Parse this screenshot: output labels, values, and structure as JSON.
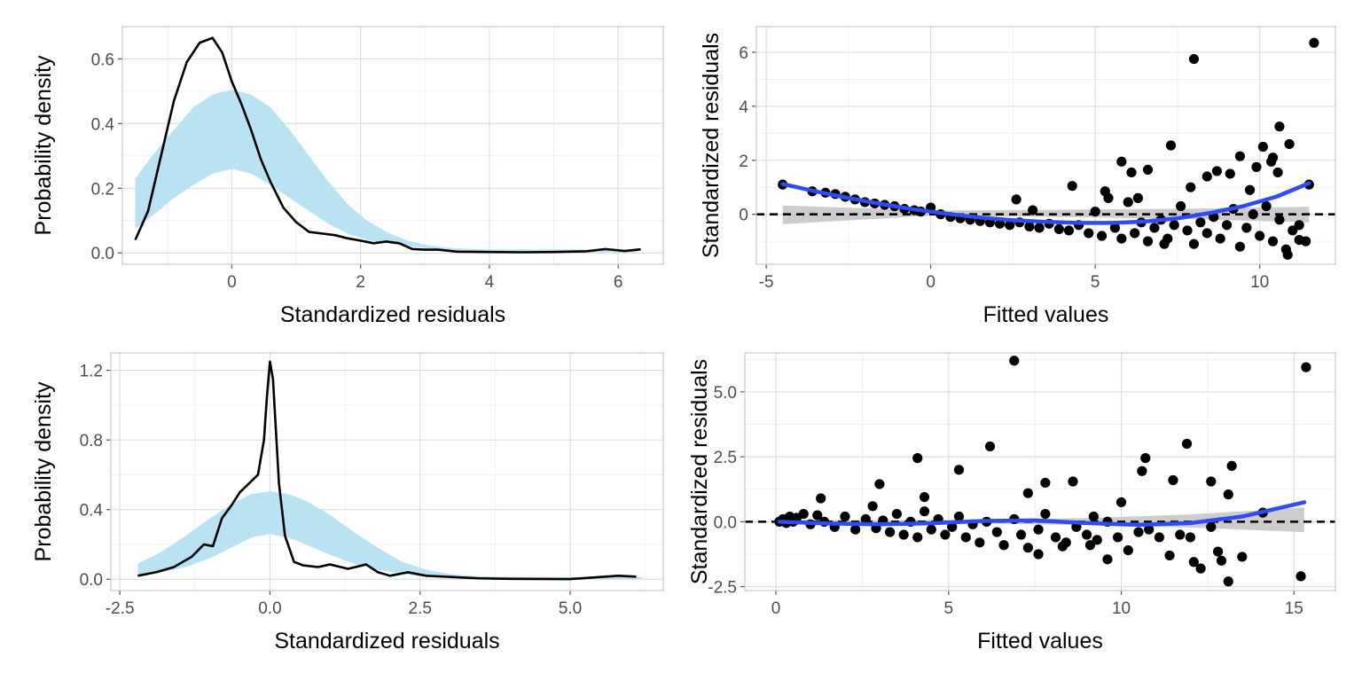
{
  "chart_data": [
    {
      "id": "density-top",
      "type": "area",
      "xlabel": "Standardized residuals",
      "ylabel": "Probability density",
      "xlim": [
        -1.7,
        6.7
      ],
      "ylim": [
        -0.035,
        0.7
      ],
      "xticks": [
        0,
        2,
        4,
        6
      ],
      "xtick_labels": [
        "0",
        "2",
        "4",
        "6"
      ],
      "yticks": [
        0.0,
        0.2,
        0.4,
        0.6
      ],
      "ytick_labels": [
        "0.0",
        "0.2",
        "0.4",
        "0.6"
      ],
      "grid": true,
      "band": {
        "color": "#b9e2f3",
        "x": [
          -1.5,
          -1.2,
          -0.9,
          -0.6,
          -0.3,
          0.0,
          0.3,
          0.6,
          0.9,
          1.2,
          1.5,
          1.8,
          2.1,
          2.4,
          2.7,
          3.0,
          3.3,
          3.6,
          4.0,
          5.0,
          6.3
        ],
        "upper": [
          0.23,
          0.31,
          0.38,
          0.45,
          0.49,
          0.505,
          0.49,
          0.45,
          0.38,
          0.3,
          0.22,
          0.15,
          0.1,
          0.065,
          0.04,
          0.025,
          0.017,
          0.013,
          0.011,
          0.011,
          0.011
        ],
        "lower": [
          0.075,
          0.12,
          0.17,
          0.21,
          0.245,
          0.26,
          0.245,
          0.21,
          0.17,
          0.13,
          0.09,
          0.06,
          0.04,
          0.03,
          0.022,
          0.015,
          0.01,
          0.006,
          0.004,
          0.002,
          0.002
        ]
      },
      "series": [
        {
          "color": "#000000",
          "x": [
            -1.5,
            -1.3,
            -1.1,
            -0.9,
            -0.7,
            -0.5,
            -0.3,
            -0.15,
            0.0,
            0.15,
            0.3,
            0.45,
            0.6,
            0.8,
            1.0,
            1.2,
            1.4,
            1.6,
            1.8,
            2.0,
            2.2,
            2.4,
            2.6,
            2.8,
            3.0,
            3.2,
            3.5,
            4.0,
            4.5,
            5.0,
            5.5,
            5.8,
            6.1,
            6.35
          ],
          "values": [
            0.04,
            0.13,
            0.3,
            0.47,
            0.59,
            0.65,
            0.665,
            0.62,
            0.53,
            0.46,
            0.38,
            0.29,
            0.22,
            0.14,
            0.095,
            0.065,
            0.06,
            0.055,
            0.045,
            0.038,
            0.03,
            0.035,
            0.03,
            0.012,
            0.01,
            0.01,
            0.004,
            0.003,
            0.002,
            0.003,
            0.005,
            0.012,
            0.006,
            0.011
          ]
        }
      ]
    },
    {
      "id": "resid-top",
      "type": "scatter",
      "xlabel": "Fitted values",
      "ylabel": "Standardized residuals",
      "xlim": [
        -5.3,
        12.3
      ],
      "ylim": [
        -1.85,
        6.95
      ],
      "xticks": [
        -5,
        0,
        5,
        10
      ],
      "xtick_labels": [
        "-5",
        "0",
        "5",
        "10"
      ],
      "yticks": [
        0,
        2,
        4,
        6
      ],
      "ytick_labels": [
        "0",
        "2",
        "4",
        "6"
      ],
      "grid": true,
      "reference_line": {
        "y": 0,
        "style": "dashed",
        "color": "#000000"
      },
      "band": {
        "color": "#cccccc",
        "x": [
          -4.5,
          0,
          4,
          8,
          11.5
        ],
        "upper": [
          0.33,
          0.14,
          0.17,
          0.21,
          0.28
        ],
        "lower": [
          -0.37,
          -0.05,
          -0.1,
          -0.18,
          -0.3
        ]
      },
      "smooth": {
        "color": "#2f4cf2",
        "x": [
          -4.5,
          -3.5,
          -2.5,
          -1.5,
          -0.5,
          0.5,
          1.5,
          2.5,
          3.5,
          4.5,
          5.5,
          6.5,
          7.5,
          8.5,
          9.5,
          10.5,
          11.5
        ],
        "values": [
          1.12,
          0.85,
          0.6,
          0.38,
          0.18,
          0.02,
          -0.12,
          -0.22,
          -0.28,
          -0.32,
          -0.32,
          -0.27,
          -0.15,
          0.05,
          0.3,
          0.65,
          1.15
        ]
      },
      "points": {
        "color": "#000000",
        "x": [
          -4.5,
          -3.6,
          -3.2,
          -2.9,
          -2.6,
          -2.3,
          -2.0,
          -1.7,
          -1.4,
          -1.1,
          -0.8,
          -0.5,
          -0.3,
          0.0,
          0.3,
          0.6,
          0.9,
          1.2,
          1.5,
          1.8,
          2.1,
          2.4,
          2.7,
          3.0,
          3.3,
          3.6,
          3.9,
          4.2,
          4.5,
          4.8,
          5.0,
          5.2,
          5.4,
          5.6,
          5.8,
          6.0,
          6.2,
          6.4,
          6.6,
          6.8,
          7.0,
          7.2,
          7.4,
          7.6,
          7.8,
          8.0,
          8.2,
          8.4,
          8.6,
          8.8,
          9.0,
          9.2,
          9.4,
          9.6,
          9.8,
          10.0,
          10.2,
          10.4,
          10.6,
          10.8,
          11.0,
          11.2,
          11.4,
          5.3,
          6.3,
          6.6,
          7.3,
          7.9,
          8.4,
          9.1,
          9.7,
          10.1,
          10.4,
          11.5,
          4.3,
          2.6,
          3.1,
          5.8,
          6.1,
          7.1,
          8.0,
          8.7,
          9.4,
          9.9,
          10.6,
          10.9
        ],
        "values": [
          1.1,
          0.85,
          0.8,
          0.75,
          0.65,
          0.55,
          0.45,
          0.4,
          0.35,
          0.3,
          0.2,
          0.15,
          0.1,
          0.25,
          0.0,
          -0.1,
          -0.15,
          -0.2,
          -0.25,
          -0.3,
          -0.35,
          -0.4,
          -0.3,
          -0.45,
          -0.5,
          -0.35,
          -0.55,
          -0.6,
          -0.4,
          -0.7,
          0.1,
          -0.8,
          0.6,
          -0.5,
          -0.9,
          0.45,
          -0.7,
          -0.3,
          -1.0,
          -0.5,
          -0.2,
          -0.9,
          -0.4,
          0.3,
          -0.6,
          -1.1,
          -0.3,
          -0.7,
          -0.1,
          -0.9,
          -0.4,
          0.2,
          -1.2,
          -0.5,
          0.0,
          -0.8,
          0.3,
          -1.0,
          -0.2,
          -1.3,
          -0.6,
          -0.4,
          -1.0,
          0.85,
          0.6,
          1.65,
          2.55,
          1.0,
          1.4,
          1.5,
          0.9,
          2.5,
          2.1,
          1.1,
          1.05,
          0.55,
          0.15,
          1.95,
          1.55,
          -1.1,
          5.75,
          1.6,
          2.15,
          1.75,
          3.25,
          2.6
        ],
        "extra_points_x": [
          11.65,
          10.55,
          10.35,
          10.85,
          11.2
        ],
        "extra_points_values": [
          6.35,
          1.55,
          1.95,
          -1.5,
          -0.95
        ]
      }
    },
    {
      "id": "density-bottom",
      "type": "area",
      "xlabel": "Standardized residuals",
      "ylabel": "Probability density",
      "xlim": [
        -2.65,
        6.55
      ],
      "ylim": [
        -0.065,
        1.3
      ],
      "xticks": [
        -2.5,
        0.0,
        2.5,
        5.0
      ],
      "xtick_labels": [
        "-2.5",
        "0.0",
        "2.5",
        "5.0"
      ],
      "yticks": [
        0.0,
        0.4,
        0.8,
        1.2
      ],
      "ytick_labels": [
        "0.0",
        "0.4",
        "0.8",
        "1.2"
      ],
      "grid": true,
      "band": {
        "color": "#b9e2f3",
        "x": [
          -2.2,
          -1.8,
          -1.4,
          -1.0,
          -0.6,
          -0.3,
          0.0,
          0.3,
          0.6,
          1.0,
          1.4,
          1.8,
          2.2,
          2.6,
          3.0,
          3.4,
          4.0,
          5.0,
          6.2
        ],
        "upper": [
          0.09,
          0.16,
          0.25,
          0.35,
          0.44,
          0.49,
          0.505,
          0.49,
          0.45,
          0.37,
          0.27,
          0.18,
          0.1,
          0.055,
          0.03,
          0.018,
          0.013,
          0.012,
          0.012
        ],
        "lower": [
          0.02,
          0.04,
          0.07,
          0.12,
          0.19,
          0.24,
          0.26,
          0.24,
          0.2,
          0.14,
          0.09,
          0.055,
          0.03,
          0.015,
          0.008,
          0.004,
          0.002,
          0.001,
          0.001
        ]
      },
      "series": [
        {
          "color": "#000000",
          "x": [
            -2.2,
            -1.9,
            -1.6,
            -1.3,
            -1.1,
            -0.95,
            -0.8,
            -0.65,
            -0.5,
            -0.35,
            -0.2,
            -0.1,
            -0.05,
            0.0,
            0.05,
            0.1,
            0.15,
            0.25,
            0.4,
            0.55,
            0.8,
            1.0,
            1.3,
            1.6,
            1.8,
            2.0,
            2.3,
            2.6,
            2.9,
            3.2,
            3.5,
            4.0,
            5.0,
            5.8,
            6.1
          ],
          "values": [
            0.02,
            0.04,
            0.07,
            0.13,
            0.2,
            0.19,
            0.35,
            0.42,
            0.5,
            0.55,
            0.6,
            0.8,
            1.05,
            1.25,
            1.15,
            0.85,
            0.55,
            0.25,
            0.1,
            0.08,
            0.07,
            0.085,
            0.06,
            0.085,
            0.04,
            0.02,
            0.04,
            0.02,
            0.015,
            0.01,
            0.005,
            0.002,
            0.001,
            0.02,
            0.015
          ]
        }
      ]
    },
    {
      "id": "resid-bottom",
      "type": "scatter",
      "xlabel": "Fitted values",
      "ylabel": "Standardized residuals",
      "xlim": [
        -0.9,
        16.2
      ],
      "ylim": [
        -2.65,
        6.5
      ],
      "xticks": [
        0,
        5,
        10,
        15
      ],
      "xtick_labels": [
        "0",
        "5",
        "10",
        "15"
      ],
      "yticks": [
        -2.5,
        0.0,
        2.5,
        5.0
      ],
      "ytick_labels": [
        "-2.5",
        "0.0",
        "2.5",
        "5.0"
      ],
      "grid": true,
      "reference_line": {
        "y": 0,
        "style": "dashed",
        "color": "#000000"
      },
      "band": {
        "color": "#cccccc",
        "x": [
          0.1,
          3,
          6,
          9,
          12,
          15.3
        ],
        "upper": [
          0.08,
          0.06,
          0.08,
          0.14,
          0.28,
          0.55
        ],
        "lower": [
          -0.08,
          -0.06,
          -0.07,
          -0.13,
          -0.22,
          -0.4
        ]
      },
      "smooth": {
        "color": "#2f4cf2",
        "x": [
          0.1,
          1.5,
          3,
          4.5,
          6,
          7.5,
          9,
          10.5,
          12,
          13.5,
          15.3
        ],
        "values": [
          0.0,
          -0.07,
          -0.1,
          -0.06,
          0.03,
          0.05,
          -0.05,
          -0.12,
          -0.05,
          0.2,
          0.75
        ]
      },
      "points": {
        "color": "#000000",
        "x": [
          0.1,
          0.2,
          0.3,
          0.4,
          0.5,
          0.6,
          0.8,
          1.0,
          1.2,
          1.4,
          1.7,
          2.0,
          2.3,
          2.6,
          2.9,
          3.1,
          3.3,
          3.5,
          3.7,
          3.9,
          4.1,
          4.3,
          4.5,
          4.7,
          4.9,
          5.1,
          5.3,
          5.5,
          5.7,
          5.9,
          6.1,
          6.4,
          6.6,
          6.9,
          7.1,
          7.3,
          7.6,
          7.8,
          8.1,
          8.4,
          8.7,
          9.0,
          9.3,
          9.6,
          9.9,
          10.2,
          10.5,
          10.8,
          11.1,
          11.4,
          11.7,
          12.0,
          12.3,
          12.6,
          12.9,
          13.2,
          13.5,
          14.1,
          15.2,
          15.35,
          6.9,
          6.2,
          5.3,
          4.1,
          4.3,
          3.0,
          2.8,
          1.3,
          7.3,
          7.8,
          8.6,
          9.2,
          10.0,
          10.7,
          10.6,
          11.9,
          12.6,
          13.1,
          12.8,
          11.5,
          13.1,
          12.1,
          9.6,
          9.1,
          8.3,
          7.6
        ],
        "values": [
          0.0,
          0.1,
          -0.05,
          0.2,
          0.0,
          0.15,
          0.3,
          -0.1,
          0.25,
          0.0,
          -0.2,
          0.2,
          -0.3,
          0.1,
          -0.25,
          0.05,
          -0.4,
          0.3,
          -0.5,
          0.0,
          -0.6,
          0.4,
          -0.3,
          0.1,
          -0.5,
          -0.2,
          0.2,
          -0.6,
          -0.1,
          -0.8,
          0.0,
          -0.4,
          -0.9,
          0.1,
          -0.5,
          -1.0,
          -0.3,
          0.3,
          -0.6,
          -0.8,
          -0.2,
          -0.5,
          -0.7,
          0.0,
          -0.6,
          -1.1,
          -0.4,
          -0.3,
          -0.6,
          -1.3,
          -0.5,
          -0.6,
          -1.8,
          -0.2,
          -1.5,
          2.15,
          -1.35,
          0.35,
          -2.1,
          5.95,
          6.2,
          2.9,
          2.0,
          2.45,
          0.95,
          1.45,
          0.6,
          0.9,
          1.1,
          1.5,
          1.55,
          0.2,
          0.75,
          2.45,
          1.95,
          3.0,
          1.55,
          1.05,
          -1.15,
          1.6,
          -2.3,
          -1.55,
          -1.45,
          -0.9,
          -0.95,
          -1.25
        ]
      }
    }
  ]
}
